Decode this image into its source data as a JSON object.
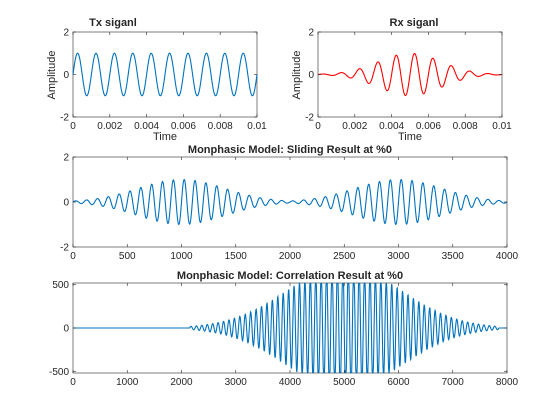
{
  "chart_data": [
    {
      "type": "line",
      "title": "Tx siganl",
      "xlabel": "Time",
      "ylabel": "Amplitude",
      "xlim": [
        0,
        0.01
      ],
      "ylim": [
        -2,
        2
      ],
      "xticks": [
        0,
        0.002,
        0.004,
        0.006,
        0.008,
        0.01
      ],
      "xtick_labels": [
        "0",
        "0.002",
        "0.004",
        "0.006",
        "0.008",
        "0.01"
      ],
      "yticks": [
        -2,
        0,
        2
      ],
      "ytick_labels": [
        "-2",
        "0",
        "2"
      ],
      "series": [
        {
          "color": "#0072BD",
          "model": "sine",
          "amplitude": 1,
          "frequency_hz": 1000,
          "x_range": [
            0,
            0.01
          ]
        }
      ]
    },
    {
      "type": "line",
      "title": "Rx siganl",
      "xlabel": "Time",
      "ylabel": "Amplitude",
      "xlim": [
        0,
        0.01
      ],
      "ylim": [
        -2,
        2
      ],
      "xticks": [
        0,
        0.002,
        0.004,
        0.006,
        0.008,
        0.01
      ],
      "xtick_labels": [
        "0",
        "0.002",
        "0.004",
        "0.006",
        "0.008",
        "0.01"
      ],
      "yticks": [
        -2,
        0,
        2
      ],
      "ytick_labels": [
        "-2",
        "0",
        "2"
      ],
      "series": [
        {
          "color": "#FF0000",
          "model": "gaussian_modulated_sine",
          "amplitude": 1,
          "frequency_hz": 1000,
          "center": 0.005,
          "sigma": 0.0017,
          "x_range": [
            0,
            0.01
          ]
        }
      ]
    },
    {
      "type": "line",
      "title": "Monphasic Model: Sliding Result at %0",
      "xlabel": "",
      "ylabel": "",
      "xlim": [
        0,
        4000
      ],
      "ylim": [
        -2,
        2
      ],
      "xticks": [
        0,
        500,
        1000,
        1500,
        2000,
        2500,
        3000,
        3500,
        4000
      ],
      "xtick_labels": [
        "0",
        "500",
        "1000",
        "1500",
        "2000",
        "2500",
        "3000",
        "3500",
        "4000"
      ],
      "yticks": [
        -2,
        0,
        2
      ],
      "ytick_labels": [
        "-2",
        "0",
        "2"
      ],
      "series": [
        {
          "color": "#0072BD",
          "model": "double_gaussian_modulated_sine",
          "amplitude": 1,
          "period": 100,
          "centers": [
            1000,
            3000
          ],
          "sigma": 400,
          "x_range": [
            0,
            4000
          ]
        }
      ]
    },
    {
      "type": "line",
      "title": "Monphasic Model: Correlation Result at %0",
      "xlabel": "",
      "ylabel": "",
      "xlim": [
        0,
        8000
      ],
      "ylim": [
        -520,
        520
      ],
      "xticks": [
        0,
        1000,
        2000,
        3000,
        4000,
        5000,
        6000,
        7000,
        8000
      ],
      "xtick_labels": [
        "0",
        "1000",
        "2000",
        "3000",
        "4000",
        "5000",
        "6000",
        "7000",
        "8000"
      ],
      "yticks": [
        -500,
        0,
        500
      ],
      "ytick_labels": [
        "-500",
        "0",
        "500"
      ],
      "series": [
        {
          "color": "#0072BD",
          "model": "gaussian_modulated_sine_clipped",
          "amplitude": 720,
          "period": 100,
          "center": 5000,
          "sigma": 1050,
          "start": 2150,
          "end": 7850,
          "clip": 515,
          "x_range": [
            0,
            8000
          ]
        }
      ]
    }
  ]
}
